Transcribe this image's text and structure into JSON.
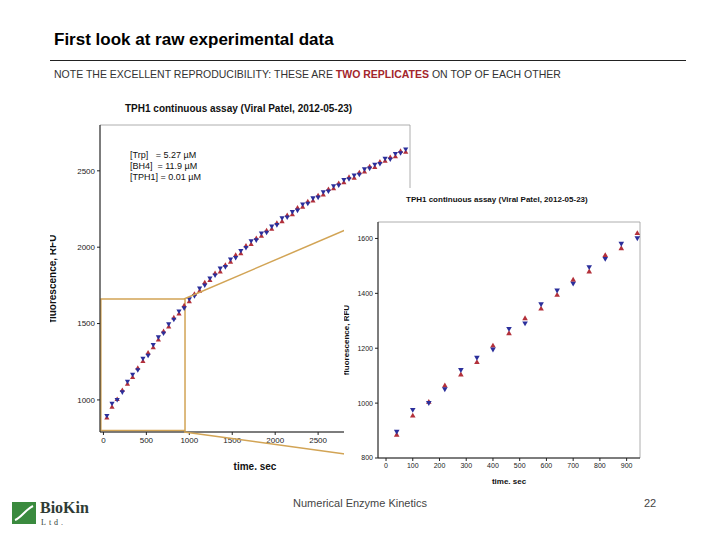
{
  "slide": {
    "title": "First look at raw experimental data",
    "subtitle": "NOTE THE EXCELLENT REPRODUCIBILITY: THESE ARE TWO REPLICATES ON TOP OF EACH OTHER",
    "highlight": "TWO REPLICATES",
    "footer": "Numerical Enzyme Kinetics",
    "page": 22,
    "logo": "BioKin",
    "logo_suffix": "Ltd."
  },
  "chart_data": [
    {
      "type": "scatter",
      "title": "TPH1 continuous assay (Viral Patel, 2012-05-23)",
      "annotations": [
        "[Trp]   = 5.27 µM",
        "[BH4]  = 11.9 µM",
        "[TPH1] = 0.01 µM"
      ],
      "x_label": "time, sec",
      "y_label": "fluorescence, RFU",
      "x": [
        40,
        100,
        160,
        220,
        280,
        340,
        400,
        460,
        520,
        580,
        640,
        700,
        760,
        820,
        880,
        940,
        1000,
        1060,
        1120,
        1180,
        1240,
        1300,
        1360,
        1420,
        1480,
        1540,
        1600,
        1660,
        1720,
        1780,
        1840,
        1900,
        1960,
        2020,
        2080,
        2140,
        2200,
        2260,
        2320,
        2380,
        2440,
        2500,
        2560,
        2620,
        2680,
        2740,
        2800,
        2860,
        2920,
        2980,
        3040,
        3100,
        3160,
        3220,
        3280,
        3340,
        3400,
        3460,
        3520
      ],
      "series": [
        {
          "color": "#b3303a",
          "marker": "triangle-up",
          "values": [
            885,
            955,
            1005,
            1065,
            1105,
            1150,
            1210,
            1255,
            1310,
            1345,
            1395,
            1450,
            1480,
            1540,
            1565,
            1620,
            1645,
            1695,
            1715,
            1770,
            1785,
            1830,
            1840,
            1885,
            1905,
            1950,
            1960,
            2010,
            2020,
            2060,
            2075,
            2110,
            2120,
            2160,
            2170,
            2210,
            2215,
            2260,
            2265,
            2300,
            2305,
            2340,
            2345,
            2380,
            2385,
            2420,
            2425,
            2460,
            2455,
            2490,
            2495,
            2530,
            2525,
            2560,
            2565,
            2590,
            2595,
            2630,
            2625
          ]
        },
        {
          "color": "#2b2f9b",
          "marker": "triangle-down",
          "values": [
            895,
            975,
            1000,
            1050,
            1120,
            1165,
            1195,
            1270,
            1290,
            1360,
            1410,
            1435,
            1495,
            1525,
            1580,
            1600,
            1660,
            1680,
            1730,
            1750,
            1795,
            1815,
            1860,
            1870,
            1920,
            1930,
            1975,
            1995,
            2040,
            2045,
            2090,
            2095,
            2135,
            2145,
            2190,
            2195,
            2230,
            2240,
            2280,
            2285,
            2320,
            2325,
            2360,
            2365,
            2400,
            2405,
            2440,
            2445,
            2470,
            2475,
            2510,
            2515,
            2540,
            2545,
            2580,
            2575,
            2610,
            2615,
            2640
          ]
        }
      ],
      "xlim": [
        -40,
        3570
      ],
      "ylim": [
        790,
        2800
      ],
      "xticks": [
        0,
        500,
        1000,
        1500,
        2000,
        2500
      ],
      "yticks": [
        1000,
        1500,
        2000,
        2500
      ]
    },
    {
      "type": "scatter",
      "title": "TPH1 continuous assay (Viral Patel, 2012-05-23)",
      "x_label": "time, sec",
      "y_label": "fluorescence, RFU",
      "x": [
        40,
        100,
        160,
        220,
        280,
        340,
        400,
        460,
        520,
        580,
        640,
        700,
        760,
        820,
        880,
        940
      ],
      "series": [
        {
          "color": "#b3303a",
          "marker": "triangle-up",
          "values": [
            885,
            955,
            1005,
            1065,
            1105,
            1150,
            1210,
            1255,
            1310,
            1345,
            1395,
            1450,
            1480,
            1540,
            1565,
            1620
          ]
        },
        {
          "color": "#2b2f9b",
          "marker": "triangle-down",
          "values": [
            895,
            975,
            1000,
            1050,
            1120,
            1165,
            1195,
            1270,
            1290,
            1360,
            1410,
            1435,
            1495,
            1525,
            1580,
            1600
          ]
        }
      ],
      "xlim": [
        -30,
        950
      ],
      "ylim": [
        800,
        1660
      ],
      "xticks": [
        0,
        100,
        200,
        300,
        400,
        500,
        600,
        700,
        800,
        900
      ],
      "yticks": [
        800,
        1000,
        1200,
        1400,
        1600
      ]
    }
  ]
}
